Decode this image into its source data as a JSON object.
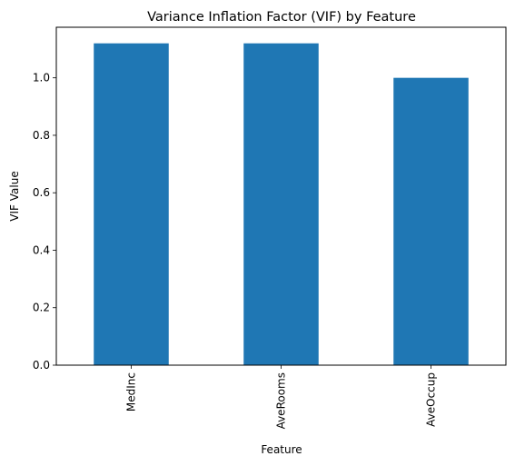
{
  "chart_data": {
    "type": "bar",
    "title": "Variance Inflation Factor (VIF) by Feature",
    "xlabel": "Feature",
    "ylabel": "VIF Value",
    "categories": [
      "MedInc",
      "AveRooms",
      "AveOccup"
    ],
    "values": [
      1.12,
      1.12,
      1.0
    ],
    "ylim": [
      0,
      1.176
    ],
    "yticks": [
      "0.0",
      "0.2",
      "0.4",
      "0.6",
      "0.8",
      "1.0"
    ],
    "bar_color": "#1f77b4",
    "grid": false,
    "legend": "none"
  }
}
